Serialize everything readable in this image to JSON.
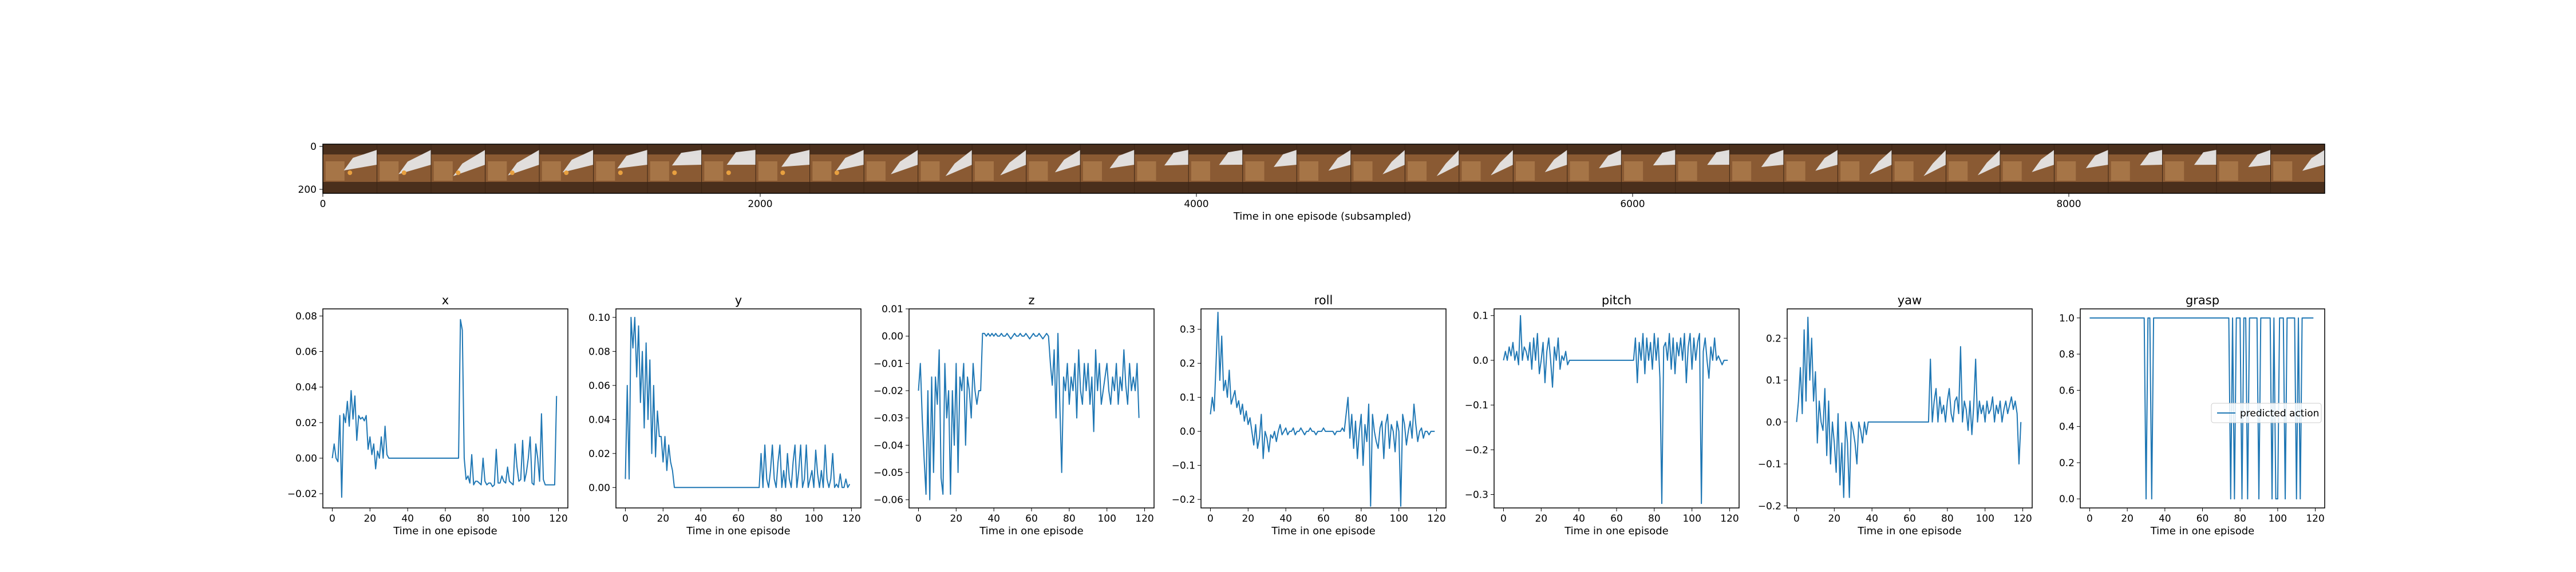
{
  "colors": {
    "series": "#1f77b4",
    "frame_dark": "#4a2f1c",
    "frame_wood": "#8a5a33",
    "frame_light": "#b98755",
    "arm": "#e6e6e6",
    "object": "#e8a040"
  },
  "strip": {
    "xlabel": "Time in one episode (subsampled)",
    "xticks": [
      "0",
      "2000",
      "4000",
      "6000",
      "8000"
    ],
    "yticks": [
      "0",
      "200"
    ],
    "frame_count": 37
  },
  "chart_data": [
    {
      "type": "line",
      "title": "x",
      "xlabel": "Time in one episode",
      "ylabel": "",
      "xlim": [
        -5,
        125
      ],
      "ylim": [
        -0.028,
        0.084
      ],
      "xticks": [
        "0",
        "20",
        "40",
        "60",
        "80",
        "100",
        "120"
      ],
      "yticks": [
        "−0.02",
        "0.00",
        "0.02",
        "0.04",
        "0.06",
        "0.08"
      ],
      "ytick_values": [
        -0.02,
        0.0,
        0.02,
        0.04,
        0.06,
        0.08
      ],
      "series": [
        {
          "values": [
            0.0,
            0.008,
            0.0,
            -0.002,
            0.024,
            -0.022,
            0.025,
            0.02,
            0.032,
            0.018,
            0.038,
            0.022,
            0.035,
            0.01,
            0.024,
            0.022,
            0.023,
            0.021,
            0.024,
            0.005,
            0.012,
            0.002,
            0.008,
            -0.006,
            0.004,
            0.0,
            0.012,
            0.0,
            0.018,
            0.002,
            0.0,
            0.0,
            0.0,
            0.0,
            0.0,
            0.0,
            0.0,
            0.0,
            0.0,
            0.0,
            0.0,
            0.0,
            0.0,
            0.0,
            0.0,
            0.0,
            0.0,
            0.0,
            0.0,
            0.0,
            0.0,
            0.0,
            0.0,
            0.0,
            0.0,
            0.0,
            0.0,
            0.0,
            0.0,
            0.0,
            0.0,
            0.0,
            0.0,
            0.0,
            0.0,
            0.0,
            0.0,
            0.0,
            0.078,
            0.072,
            0.0,
            -0.012,
            -0.01,
            -0.014,
            0.002,
            -0.015,
            -0.013,
            -0.013,
            -0.014,
            -0.015,
            0.0,
            -0.013,
            -0.015,
            -0.014,
            -0.014,
            -0.016,
            -0.015,
            0.005,
            -0.014,
            -0.014,
            -0.01,
            -0.013,
            -0.014,
            -0.005,
            -0.013,
            -0.014,
            -0.015,
            0.008,
            -0.005,
            -0.013,
            -0.012,
            0.01,
            -0.013,
            -0.008,
            0.0,
            0.012,
            -0.014,
            -0.015,
            0.008,
            0.0,
            -0.013,
            0.025,
            -0.012,
            -0.015,
            -0.015,
            -0.015,
            -0.015,
            -0.015,
            -0.015,
            0.035
          ]
        }
      ]
    },
    {
      "type": "line",
      "title": "y",
      "xlabel": "Time in one episode",
      "ylabel": "",
      "xlim": [
        -5,
        125
      ],
      "ylim": [
        -0.012,
        0.105
      ],
      "xticks": [
        "0",
        "20",
        "40",
        "60",
        "80",
        "100",
        "120"
      ],
      "yticks": [
        "0.00",
        "0.02",
        "0.04",
        "0.06",
        "0.08",
        "0.10"
      ],
      "ytick_values": [
        0.0,
        0.02,
        0.04,
        0.06,
        0.08,
        0.1
      ],
      "series": [
        {
          "values": [
            0.005,
            0.06,
            0.005,
            0.1,
            0.082,
            0.1,
            0.065,
            0.095,
            0.05,
            0.08,
            0.035,
            0.085,
            0.04,
            0.075,
            0.02,
            0.06,
            0.018,
            0.045,
            0.03,
            0.03,
            0.015,
            0.03,
            0.01,
            0.025,
            0.015,
            0.01,
            0.0,
            0.0,
            0.0,
            0.0,
            0.0,
            0.0,
            0.0,
            0.0,
            0.0,
            0.0,
            0.0,
            0.0,
            0.0,
            0.0,
            0.0,
            0.0,
            0.0,
            0.0,
            0.0,
            0.0,
            0.0,
            0.0,
            0.0,
            0.0,
            0.0,
            0.0,
            0.0,
            0.0,
            0.0,
            0.0,
            0.0,
            0.0,
            0.0,
            0.0,
            0.0,
            0.0,
            0.0,
            0.0,
            0.0,
            0.0,
            0.0,
            0.0,
            0.0,
            0.0,
            0.0,
            0.0,
            0.02,
            0.0,
            0.025,
            0.005,
            0.0,
            0.01,
            0.025,
            0.005,
            0.0,
            0.015,
            0.025,
            0.0,
            0.01,
            0.0,
            0.02,
            0.005,
            0.0,
            0.015,
            0.025,
            0.0,
            0.01,
            0.025,
            0.0,
            0.005,
            0.025,
            0.0,
            0.005,
            0.01,
            0.0,
            0.022,
            0.008,
            0.0,
            0.01,
            0.0,
            0.025,
            0.005,
            0.0,
            0.005,
            0.02,
            0.0,
            0.002,
            0.0,
            0.008,
            0.0,
            0.0,
            0.005,
            0.0,
            0.002
          ]
        }
      ]
    },
    {
      "type": "line",
      "title": "z",
      "xlabel": "Time in one episode",
      "ylabel": "",
      "xlim": [
        -5,
        125
      ],
      "ylim": [
        -0.063,
        0.01
      ],
      "xticks": [
        "0",
        "20",
        "40",
        "60",
        "80",
        "100",
        "120"
      ],
      "yticks": [
        "−0.06",
        "−0.05",
        "−0.04",
        "−0.03",
        "−0.02",
        "−0.01",
        "0.00",
        "0.01"
      ],
      "ytick_values": [
        -0.06,
        -0.05,
        -0.04,
        -0.03,
        -0.02,
        -0.01,
        0.0,
        0.01
      ],
      "series": [
        {
          "values": [
            -0.02,
            -0.01,
            -0.03,
            -0.045,
            -0.058,
            -0.02,
            -0.06,
            -0.015,
            -0.05,
            -0.015,
            -0.025,
            -0.005,
            -0.052,
            -0.058,
            -0.01,
            -0.03,
            -0.02,
            -0.058,
            -0.02,
            -0.04,
            -0.01,
            -0.05,
            -0.015,
            -0.02,
            -0.01,
            -0.04,
            -0.015,
            -0.02,
            -0.03,
            -0.01,
            -0.02,
            -0.025,
            -0.02,
            -0.02,
            0.001,
            0.001,
            0.0,
            0.001,
            0.0,
            0.001,
            0.0,
            0.001,
            0.0,
            0.0,
            0.001,
            0.0,
            0.0,
            0.001,
            0.0,
            -0.001,
            0.0,
            0.001,
            0.0,
            0.0,
            0.001,
            0.0,
            0.0,
            0.001,
            0.0,
            -0.001,
            0.0,
            0.001,
            0.0,
            0.0,
            0.001,
            0.0,
            -0.001,
            0.0,
            0.001,
            0.0,
            -0.01,
            -0.018,
            -0.005,
            -0.03,
            0.001,
            -0.025,
            -0.05,
            -0.015,
            -0.02,
            -0.01,
            -0.025,
            -0.015,
            -0.02,
            -0.01,
            -0.03,
            -0.005,
            -0.02,
            -0.025,
            -0.01,
            -0.02,
            -0.01,
            -0.025,
            -0.015,
            -0.035,
            -0.005,
            -0.02,
            -0.01,
            -0.025,
            -0.02,
            -0.015,
            -0.01,
            -0.02,
            -0.025,
            -0.015,
            -0.02,
            -0.01,
            -0.025,
            -0.015,
            -0.02,
            -0.005,
            -0.018,
            -0.025,
            -0.01,
            -0.02,
            -0.015,
            -0.02,
            -0.01,
            -0.03
          ]
        }
      ]
    },
    {
      "type": "line",
      "title": "roll",
      "xlabel": "Time in one episode",
      "ylabel": "",
      "xlim": [
        -5,
        125
      ],
      "ylim": [
        -0.225,
        0.36
      ],
      "xticks": [
        "0",
        "20",
        "40",
        "60",
        "80",
        "100",
        "120"
      ],
      "yticks": [
        "−0.2",
        "−0.1",
        "0.0",
        "0.1",
        "0.2",
        "0.3"
      ],
      "ytick_values": [
        -0.2,
        -0.1,
        0.0,
        0.1,
        0.2,
        0.3
      ],
      "series": [
        {
          "values": [
            0.05,
            0.1,
            0.06,
            0.2,
            0.35,
            0.15,
            0.28,
            0.12,
            0.15,
            0.1,
            0.18,
            0.08,
            0.1,
            0.12,
            0.07,
            0.09,
            0.05,
            0.08,
            0.03,
            0.06,
            0.02,
            0.04,
            0.0,
            -0.04,
            0.02,
            -0.05,
            -0.02,
            0.05,
            -0.08,
            0.0,
            -0.02,
            -0.06,
            -0.01,
            -0.02,
            0.0,
            -0.03,
            0.0,
            0.02,
            -0.01,
            0.0,
            0.01,
            -0.01,
            0.0,
            0.0,
            0.01,
            -0.01,
            0.0,
            0.0,
            0.01,
            0.0,
            -0.01,
            0.0,
            0.0,
            0.01,
            0.0,
            0.0,
            -0.01,
            0.0,
            0.0,
            0.0,
            0.01,
            0.0,
            0.0,
            0.0,
            0.0,
            0.0,
            -0.01,
            0.0,
            0.0,
            0.0,
            0.01,
            0.0,
            0.05,
            0.1,
            -0.02,
            0.05,
            -0.05,
            0.03,
            -0.08,
            0.0,
            0.05,
            -0.1,
            0.02,
            -0.03,
            0.08,
            -0.22,
            0.05,
            0.0,
            -0.03,
            -0.05,
            0.01,
            0.03,
            -0.08,
            0.02,
            0.05,
            -0.05,
            0.02,
            0.0,
            -0.06,
            0.03,
            0.0,
            -0.22,
            0.05,
            0.02,
            -0.04,
            0.0,
            0.03,
            -0.02,
            0.08,
            0.02,
            -0.03,
            0.0,
            0.01,
            -0.02,
            0.0,
            0.0,
            -0.01,
            0.0,
            0.0,
            0.0
          ]
        }
      ]
    },
    {
      "type": "line",
      "title": "pitch",
      "xlabel": "Time in one episode",
      "ylabel": "",
      "xlim": [
        -5,
        125
      ],
      "ylim": [
        -0.33,
        0.115
      ],
      "xticks": [
        "0",
        "20",
        "40",
        "60",
        "80",
        "100",
        "120"
      ],
      "yticks": [
        "−0.3",
        "−0.2",
        "−0.1",
        "0.0",
        "0.1"
      ],
      "ytick_values": [
        -0.3,
        -0.2,
        -0.1,
        0.0,
        0.1
      ],
      "series": [
        {
          "values": [
            0.0,
            0.02,
            0.0,
            0.03,
            0.01,
            0.04,
            0.0,
            0.02,
            -0.01,
            0.1,
            0.0,
            0.03,
            0.02,
            0.0,
            0.04,
            -0.02,
            0.05,
            0.0,
            0.06,
            -0.03,
            0.0,
            0.04,
            -0.05,
            0.02,
            0.05,
            0.0,
            -0.06,
            0.03,
            0.0,
            0.05,
            -0.02,
            0.01,
            0.0,
            0.02,
            -0.01,
            0.0,
            0.0,
            0.0,
            0.0,
            0.0,
            0.0,
            0.0,
            0.0,
            0.0,
            0.0,
            0.0,
            0.0,
            0.0,
            0.0,
            0.0,
            0.0,
            0.0,
            0.0,
            0.0,
            0.0,
            0.0,
            0.0,
            0.0,
            0.0,
            0.0,
            0.0,
            0.0,
            0.0,
            0.0,
            0.0,
            0.0,
            0.0,
            0.0,
            0.0,
            0.0,
            0.05,
            -0.05,
            0.04,
            0.0,
            0.06,
            -0.03,
            0.05,
            0.0,
            0.04,
            -0.02,
            0.06,
            0.0,
            0.05,
            -0.04,
            -0.32,
            0.03,
            0.04,
            0.0,
            0.06,
            -0.02,
            0.05,
            -0.03,
            0.04,
            0.01,
            0.05,
            0.0,
            0.06,
            -0.05,
            0.03,
            0.06,
            -0.02,
            0.05,
            0.0,
            0.04,
            0.06,
            -0.32,
            0.02,
            0.05,
            0.0,
            -0.04,
            0.03,
            0.0,
            0.05,
            0.0,
            0.01,
            0.0,
            -0.01,
            0.0,
            0.0,
            0.0
          ]
        }
      ]
    },
    {
      "type": "line",
      "title": "yaw",
      "xlabel": "Time in one episode",
      "ylabel": "",
      "xlim": [
        -5,
        125
      ],
      "ylim": [
        -0.205,
        0.27
      ],
      "xticks": [
        "0",
        "20",
        "40",
        "60",
        "80",
        "100",
        "120"
      ],
      "yticks": [
        "−0.2",
        "−0.1",
        "0.0",
        "0.1",
        "0.2"
      ],
      "ytick_values": [
        -0.2,
        -0.1,
        0.0,
        0.1,
        0.2
      ],
      "series": [
        {
          "values": [
            0.0,
            0.05,
            0.13,
            0.02,
            0.22,
            0.05,
            0.25,
            0.1,
            0.2,
            0.05,
            0.12,
            -0.05,
            0.05,
            0.0,
            -0.02,
            0.08,
            -0.08,
            0.05,
            -0.1,
            0.0,
            -0.05,
            -0.12,
            0.02,
            -0.15,
            -0.05,
            -0.18,
            0.0,
            -0.05,
            -0.18,
            0.0,
            -0.02,
            -0.05,
            -0.1,
            0.0,
            -0.02,
            -0.05,
            0.0,
            -0.03,
            0.0,
            0.0,
            0.0,
            0.0,
            0.0,
            0.0,
            0.0,
            0.0,
            0.0,
            0.0,
            0.0,
            0.0,
            0.0,
            0.0,
            0.0,
            0.0,
            0.0,
            0.0,
            0.0,
            0.0,
            0.0,
            0.0,
            0.0,
            0.0,
            0.0,
            0.0,
            0.0,
            0.0,
            0.0,
            0.0,
            0.0,
            0.0,
            0.0,
            0.15,
            0.0,
            0.05,
            0.08,
            0.0,
            0.06,
            0.02,
            0.04,
            0.0,
            0.05,
            0.08,
            0.02,
            0.0,
            0.05,
            0.06,
            0.02,
            0.18,
            0.0,
            0.05,
            0.03,
            -0.02,
            0.05,
            -0.03,
            0.04,
            0.15,
            0.0,
            0.05,
            0.02,
            0.04,
            0.0,
            0.05,
            0.02,
            0.03,
            0.06,
            0.0,
            0.04,
            0.02,
            0.05,
            0.0,
            0.03,
            0.05,
            0.02,
            0.04,
            0.06,
            0.03,
            0.05,
            0.02,
            -0.1,
            0.0
          ]
        }
      ]
    },
    {
      "type": "line",
      "title": "grasp",
      "xlabel": "Time in one episode",
      "ylabel": "",
      "xlim": [
        -5,
        125
      ],
      "ylim": [
        -0.05,
        1.05
      ],
      "xticks": [
        "0",
        "20",
        "40",
        "60",
        "80",
        "100",
        "120"
      ],
      "yticks": [
        "0.0",
        "0.2",
        "0.4",
        "0.6",
        "0.8",
        "1.0"
      ],
      "ytick_values": [
        0.0,
        0.2,
        0.4,
        0.6,
        0.8,
        1.0
      ],
      "legend": "predicted action",
      "legend_position": "center-right",
      "series": [
        {
          "name": "predicted action",
          "values": [
            1,
            1,
            1,
            1,
            1,
            1,
            1,
            1,
            1,
            1,
            1,
            1,
            1,
            1,
            1,
            1,
            1,
            1,
            1,
            1,
            1,
            1,
            1,
            1,
            1,
            1,
            1,
            1,
            1,
            1,
            0,
            1,
            1,
            0,
            1,
            1,
            1,
            1,
            1,
            1,
            1,
            1,
            1,
            1,
            1,
            1,
            1,
            1,
            1,
            1,
            1,
            1,
            1,
            1,
            1,
            1,
            1,
            1,
            1,
            1,
            1,
            1,
            1,
            1,
            1,
            1,
            1,
            1,
            1,
            1,
            1,
            1,
            1,
            1,
            1,
            0,
            1,
            0,
            1,
            1,
            1,
            0,
            1,
            1,
            0,
            1,
            1,
            1,
            1,
            1,
            0,
            1,
            1,
            1,
            1,
            1,
            1,
            0,
            1,
            0,
            0,
            1,
            1,
            1,
            0,
            1,
            1,
            1,
            1,
            1,
            0,
            1,
            0,
            1,
            1,
            1,
            1,
            1,
            1,
            1
          ]
        }
      ]
    }
  ]
}
